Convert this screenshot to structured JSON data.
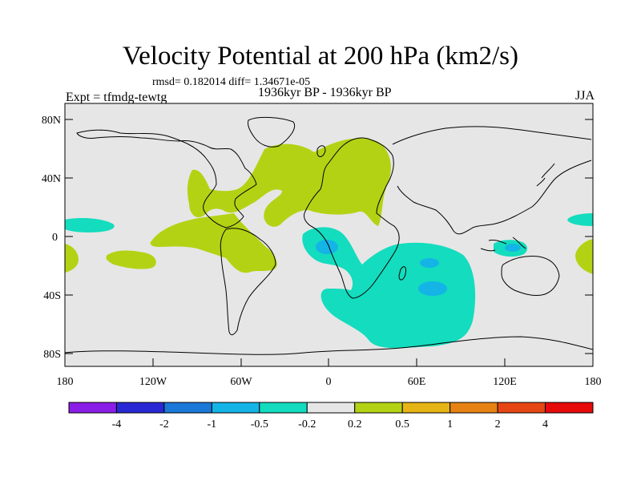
{
  "title": "Velocity Potential at 200 hPa (km2/s)",
  "stats_line": "rmsd= 0.182014 diff= 1.34671e-05",
  "experiment": "Expt = tfmdg-tewtg",
  "period": "1936kyr BP - 1936kyr BP",
  "season": "JJA",
  "lat_ticks": [
    "80N",
    "40N",
    "0",
    "40S",
    "80S"
  ],
  "lon_ticks": [
    "180",
    "120W",
    "60W",
    "0",
    "60E",
    "120E",
    "180"
  ],
  "legend": {
    "labels": [
      "-4",
      "-2",
      "-1",
      "-0.5",
      "-0.2",
      "0.2",
      "0.5",
      "1",
      "2",
      "4"
    ],
    "colors": [
      "#8a1ee6",
      "#2828d4",
      "#1a78d8",
      "#14b4e6",
      "#14dcbe",
      "#e6e6e6",
      "#b4d214",
      "#e6b414",
      "#e68214",
      "#e64614",
      "#e60a0a"
    ]
  },
  "colors": {
    "land_background": "#e6e6e6",
    "positive_fill": "#b4d214",
    "negative_fill": "#14dcbe",
    "negative_core": "#14b4e6"
  }
}
